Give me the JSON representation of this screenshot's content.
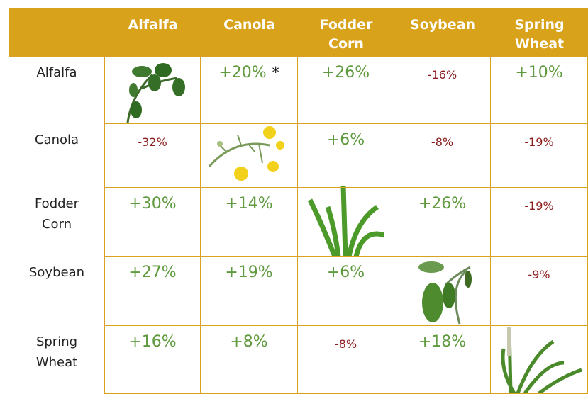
{
  "table": {
    "columns": [
      "Alfalfa",
      "Canola",
      "Fodder Corn",
      "Soybean",
      "Spring Wheat"
    ],
    "rows": [
      {
        "label": "Alfalfa",
        "cells": [
          null,
          "+20%",
          "+26%",
          "-16%",
          "+10%"
        ]
      },
      {
        "label": "Canola",
        "cells": [
          "-32%",
          null,
          "+6%",
          "-8%",
          "-19%"
        ]
      },
      {
        "label": "Fodder Corn",
        "cells": [
          "+30%",
          "+14%",
          null,
          "+26%",
          "-19%"
        ]
      },
      {
        "label": "Soybean",
        "cells": [
          "+27%",
          "+19%",
          "+6%",
          null,
          "-9%"
        ]
      },
      {
        "label": "Spring Wheat",
        "cells": [
          "+16%",
          "+8%",
          "-8%",
          "+18%",
          null
        ]
      }
    ],
    "note_mark": "*",
    "positive_color": "#5f9a3e",
    "negative_color": "#8b1c1c",
    "header_color": "#d9a21b"
  }
}
